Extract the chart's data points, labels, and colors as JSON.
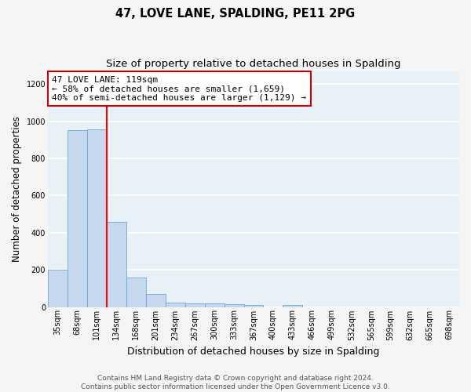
{
  "title": "47, LOVE LANE, SPALDING, PE11 2PG",
  "subtitle": "Size of property relative to detached houses in Spalding",
  "xlabel": "Distribution of detached houses by size in Spalding",
  "ylabel": "Number of detached properties",
  "categories": [
    "35sqm",
    "68sqm",
    "101sqm",
    "134sqm",
    "168sqm",
    "201sqm",
    "234sqm",
    "267sqm",
    "300sqm",
    "333sqm",
    "367sqm",
    "400sqm",
    "433sqm",
    "466sqm",
    "499sqm",
    "532sqm",
    "565sqm",
    "599sqm",
    "632sqm",
    "665sqm",
    "698sqm"
  ],
  "values": [
    200,
    950,
    955,
    460,
    160,
    70,
    23,
    20,
    18,
    13,
    10,
    0,
    12,
    0,
    0,
    0,
    0,
    0,
    0,
    0,
    0
  ],
  "bar_color": "#c5d8ee",
  "bar_edge_color": "#6fa8d4",
  "background_color": "#e8f0f8",
  "grid_color": "#ffffff",
  "red_line_x": 2.5,
  "annotation_text": "47 LOVE LANE: 119sqm\n← 58% of detached houses are smaller (1,659)\n40% of semi-detached houses are larger (1,129) →",
  "annotation_box_facecolor": "#ffffff",
  "annotation_box_edgecolor": "#cc0000",
  "ylim": [
    0,
    1270
  ],
  "yticks": [
    0,
    200,
    400,
    600,
    800,
    1000,
    1200
  ],
  "footer": "Contains HM Land Registry data © Crown copyright and database right 2024.\nContains public sector information licensed under the Open Government Licence v3.0.",
  "fig_facecolor": "#f5f5f5",
  "title_fontsize": 10.5,
  "subtitle_fontsize": 9.5,
  "xlabel_fontsize": 9,
  "ylabel_fontsize": 8.5,
  "tick_fontsize": 7,
  "annotation_fontsize": 8,
  "footer_fontsize": 6.5
}
